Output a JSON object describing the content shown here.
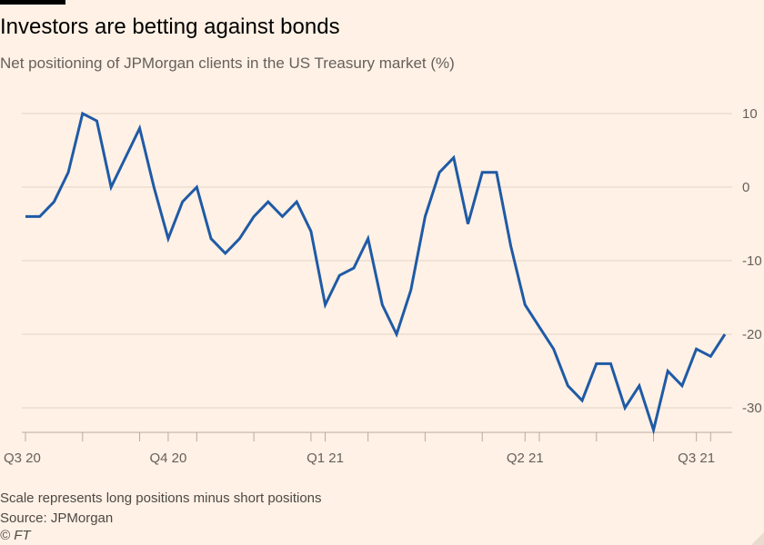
{
  "header": {
    "title": "Investors are betting against bonds",
    "subtitle": "Net positioning of JPMorgan clients in the US Treasury market (%)"
  },
  "footer": {
    "note": "Scale represents long positions minus short positions",
    "source": "Source: JPMorgan",
    "copyright": "© FT"
  },
  "colors": {
    "line": "#1f5aa6",
    "grid": "#e0d5c8",
    "axis": "#b8ab9e",
    "background": "#fff1e5"
  },
  "chart_data": {
    "type": "line",
    "title": "Investors are betting against bonds",
    "subtitle": "Net positioning of JPMorgan clients in the US Treasury market (%)",
    "xlabel": "",
    "ylabel": "",
    "ylim": [
      -33,
      13
    ],
    "yticks": [
      10,
      0,
      -10,
      -20,
      -30
    ],
    "ytick_labels": [
      "10",
      "0",
      "-10",
      "-20",
      "-30"
    ],
    "y_axis_position": "right",
    "grid": true,
    "legend": "none",
    "x_period_labels": [
      {
        "label": "Q3 20",
        "index": 0
      },
      {
        "label": "Q4 20",
        "index": 10
      },
      {
        "label": "Q1 21",
        "index": 21
      },
      {
        "label": "Q2 21",
        "index": 35
      },
      {
        "label": "Q3 21",
        "index": 47
      }
    ],
    "series": [
      {
        "values": [
          -4,
          -4,
          -2,
          2,
          10,
          9,
          0,
          4,
          8,
          0,
          -7,
          -2,
          0,
          -7,
          -9,
          -7,
          -4,
          -2,
          -4,
          -2,
          -6,
          -16,
          -12,
          -11,
          -7,
          -16,
          -20,
          -14,
          -4,
          2,
          4,
          -5,
          2,
          2,
          -8,
          -16,
          -19,
          -22,
          -27,
          -29,
          -24,
          -24,
          -30,
          -27,
          -33,
          -25,
          -27,
          -22,
          -23,
          -20
        ]
      }
    ]
  }
}
